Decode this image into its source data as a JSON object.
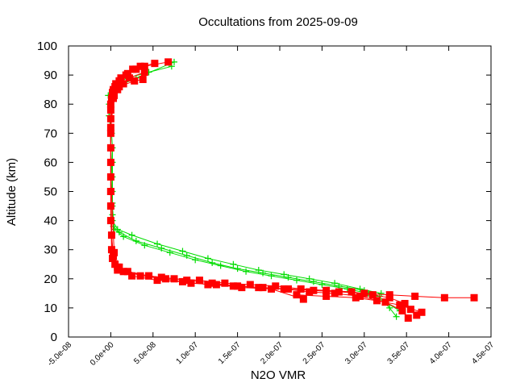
{
  "chart_data": {
    "type": "scatter",
    "title": "Occultations from 2025-09-09",
    "xlabel": "N2O VMR",
    "ylabel": "Altitude (km)",
    "xlim": [
      -5e-08,
      4.5e-07
    ],
    "ylim": [
      0,
      100
    ],
    "grid": false,
    "legend": "none",
    "x_ticks": [
      -5e-08,
      0,
      5e-08,
      1e-07,
      1.5e-07,
      2e-07,
      2.5e-07,
      3e-07,
      3.5e-07,
      4e-07,
      4.5e-07
    ],
    "x_tick_labels": [
      "-5.0e-08",
      "0.0e+00",
      "5.0e-08",
      "1.0e-07",
      "1.5e-07",
      "2.0e-07",
      "2.5e-07",
      "3.0e-07",
      "3.5e-07",
      "4.0e-07",
      "4.5e-07"
    ],
    "y_ticks": [
      0,
      10,
      20,
      30,
      40,
      50,
      60,
      70,
      80,
      90,
      100
    ],
    "y_tick_labels": [
      "0",
      "10",
      "20",
      "30",
      "40",
      "50",
      "60",
      "70",
      "80",
      "90",
      "100"
    ],
    "colors": {
      "green": "#00dd00",
      "red": "#ff0000",
      "axis": "#000000"
    },
    "series": [
      {
        "name": "green-profiles",
        "color": "#00dd00",
        "marker": "plus",
        "profiles": [
          {
            "x": [
              3.38e-07,
              3.3e-07,
              3.18e-07,
              3e-07,
              2.7e-07,
              2.4e-07,
              2.1e-07,
              1.8e-07,
              1.5e-07,
              1.2e-07,
              9e-08,
              6e-08,
              3e-08,
              1e-08,
              3e-09,
              2e-09,
              2e-09,
              2e-09,
              2e-09,
              2e-09,
              2e-09,
              1e-09,
              -2e-09,
              -3e-09,
              5e-09,
              2e-08,
              4.5e-08,
              7.2e-08
            ],
            "y": [
              7,
              10,
              14,
              16,
              17.5,
              19,
              20.5,
              22,
              23.5,
              25.5,
              28,
              30.5,
              33,
              36,
              38,
              42,
              46,
              50,
              55,
              60,
              65,
              70,
              76,
              83,
              87,
              89,
              91,
              93
            ]
          },
          {
            "x": [
              3.42e-07,
              3.25e-07,
              3.05e-07,
              2.8e-07,
              2.5e-07,
              2.2e-07,
              1.9e-07,
              1.6e-07,
              1.3e-07,
              1e-07,
              7e-08,
              4e-08,
              1.5e-08,
              4e-09,
              2e-09,
              1e-09,
              -2e-09,
              8e-09,
              3e-08,
              7.5e-08
            ],
            "y": [
              9,
              12,
              15,
              16.5,
              18,
              19.5,
              21,
              22.5,
              24.5,
              26.5,
              29,
              31.5,
              34.5,
              37,
              45,
              60,
              80,
              86,
              89,
              94.5
            ]
          },
          {
            "x": [
              3.2e-07,
              2.95e-07,
              2.65e-07,
              2.35e-07,
              2.05e-07,
              1.75e-07,
              1.45e-07,
              1.15e-07,
              8.5e-08,
              5.5e-08,
              2.5e-08,
              8e-09,
              2e-09
            ],
            "y": [
              15,
              16.5,
              18.5,
              20,
              21.5,
              23,
              25,
              27,
              29.5,
              32,
              35,
              37,
              40
            ]
          }
        ]
      },
      {
        "name": "red-profiles",
        "color": "#ff0000",
        "marker": "square",
        "profiles": [
          {
            "x": [
              4.3e-07,
              3.95e-07,
              3.6e-07,
              3.3e-07,
              3e-07,
              2.7e-07,
              2.4e-07,
              2.1e-07,
              1.8e-07,
              1.5e-07,
              1.2e-07,
              9e-08,
              6e-08,
              4.5e-08,
              2e-08,
              8e-09,
              3e-09,
              1e-09,
              0,
              0,
              0,
              0,
              0,
              1e-09,
              3e-09,
              6e-09,
              1.2e-08,
              2e-08,
              3e-08,
              4e-08,
              6.8e-08
            ],
            "y": [
              13.5,
              13.5,
              14,
              14.5,
              15,
              15.5,
              16,
              16.5,
              17,
              17.5,
              18.5,
              19.5,
              20.5,
              21,
              22.5,
              24,
              28,
              35,
              40,
              50,
              60,
              70,
              78,
              82,
              85,
              87,
              89,
              90.5,
              92,
              93,
              94.5
            ]
          },
          {
            "x": [
              3.62e-07,
              3.55e-07,
              3.48e-07,
              3.3e-07,
              3.1e-07,
              2.85e-07,
              2.55e-07,
              2.25e-07,
              1.95e-07,
              1.65e-07,
              1.35e-07,
              1.05e-07,
              7.5e-08,
              4.5e-08,
              1.5e-08,
              5e-09,
              1e-09,
              0,
              0,
              0,
              2e-09,
              5e-09,
              1e-08,
              1.8e-08,
              2.6e-08,
              3.5e-08,
              5.2e-08
            ],
            "y": [
              7.5,
              9.5,
              11.5,
              13.5,
              14.5,
              15.5,
              16,
              16.5,
              17.5,
              18,
              18.5,
              19.5,
              20,
              21,
              22.5,
              25,
              30,
              45,
              65,
              80,
              84,
              86,
              88,
              90,
              92,
              93,
              94
            ]
          },
          {
            "x": [
              3.52e-07,
              3.45e-07,
              3.25e-07,
              2.95e-07,
              2.65e-07,
              2.35e-07,
              2.05e-07,
              1.75e-07,
              1.45e-07,
              1.15e-07,
              8.5e-08,
              5.5e-08,
              2.5e-08,
              8e-09,
              2e-09,
              0,
              0,
              3e-09,
              8e-09,
              1.5e-08,
              2.2e-08,
              4e-08
            ],
            "y": [
              6.5,
              9,
              12,
              14,
              15,
              15.5,
              16.5,
              17,
              17.5,
              18,
              19,
              19.5,
              21,
              23,
              27,
              50,
              75,
              82,
              85,
              87,
              89,
              91
            ]
          },
          {
            "x": [
              3.68e-07,
              3.42e-07,
              3.15e-07,
              2.9e-07,
              2.55e-07,
              2.2e-07,
              2.28e-07,
              1.9e-07,
              1.55e-07,
              1.25e-07,
              9.5e-08,
              6.5e-08,
              3.5e-08,
              1e-08,
              4e-09,
              0,
              0,
              4e-09,
              1e-08,
              2.8e-08,
              3.8e-08
            ],
            "y": [
              8.5,
              11,
              12.5,
              13.5,
              14,
              14.5,
              13,
              16.5,
              17,
              18,
              18.5,
              20,
              21,
              24,
              29,
              55,
              72,
              83,
              86,
              88,
              88.5
            ]
          }
        ]
      }
    ]
  }
}
